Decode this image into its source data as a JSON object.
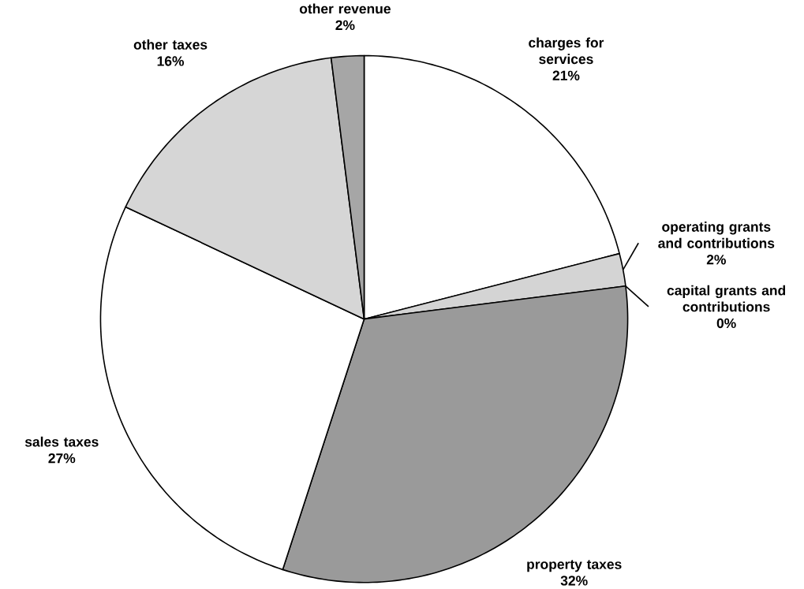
{
  "chart_data": {
    "type": "pie",
    "categories": [
      "charges for services",
      "operating grants and contributions",
      "capital grants and contributions",
      "property taxes",
      "sales taxes",
      "other taxes",
      "other revenue"
    ],
    "values": [
      21,
      2,
      0,
      32,
      27,
      16,
      2
    ],
    "value_labels": [
      "21%",
      "2%",
      "0%",
      "32%",
      "27%",
      "16%",
      "2%"
    ],
    "colors": [
      "#ffffff",
      "#d4d4d4",
      "#c8c8c8",
      "#9a9a9a",
      "#ffffff",
      "#d6d6d6",
      "#a6a6a6"
    ]
  }
}
